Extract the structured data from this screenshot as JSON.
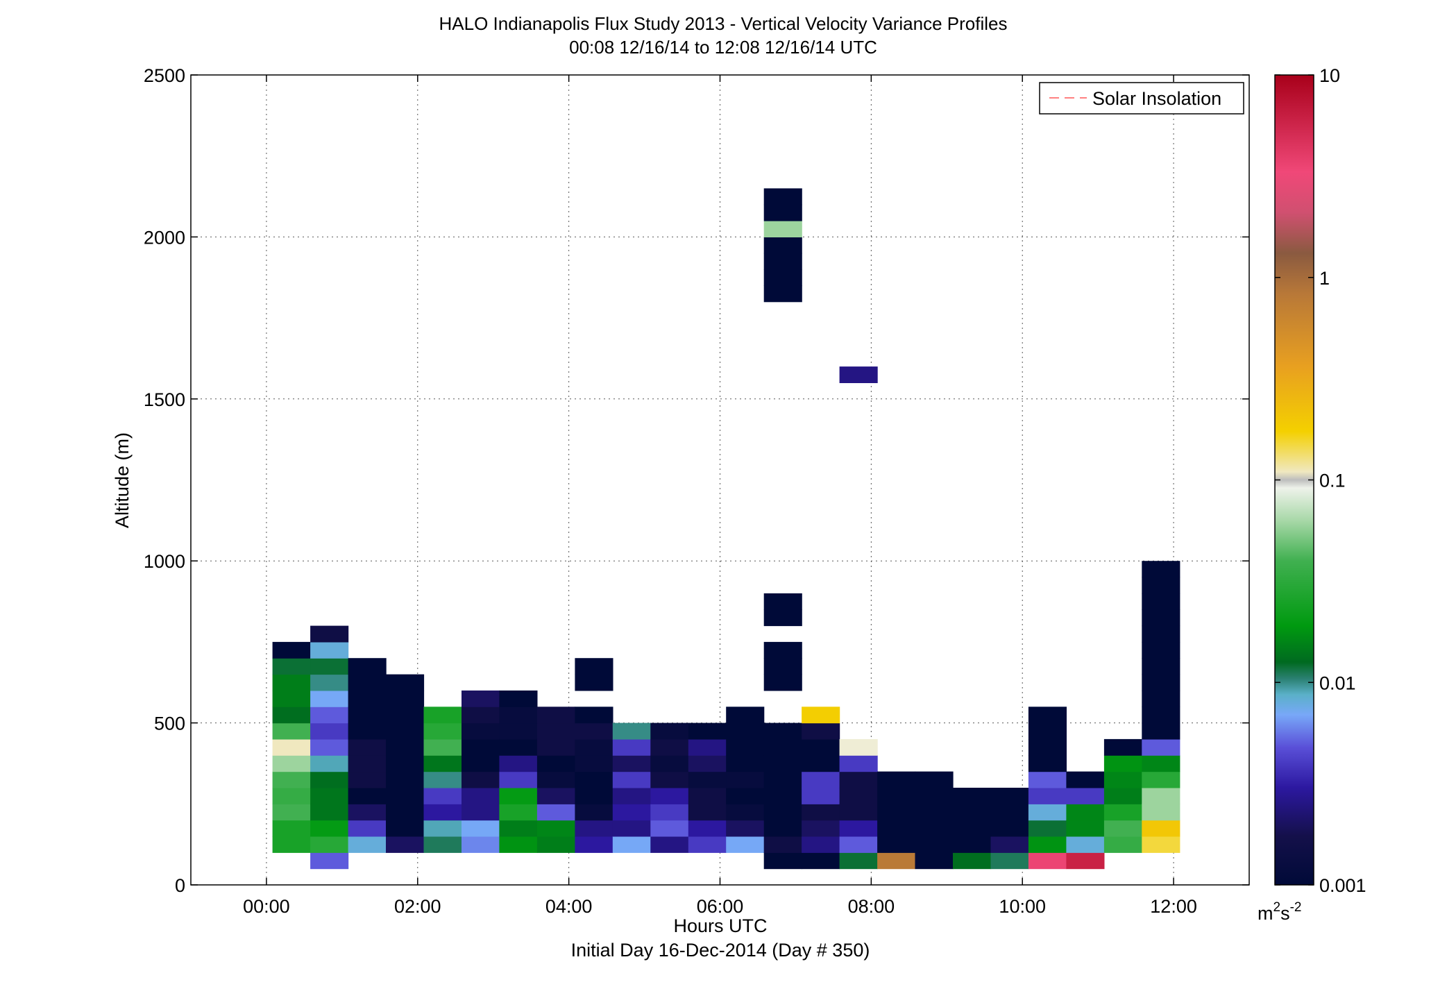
{
  "chart_data": {
    "type": "heatmap",
    "title": "HALO Indianapolis Flux Study 2013 - Vertical Velocity Variance Profiles",
    "subtitle": "00:08 12/16/14 to 12:08 12/16/14  UTC",
    "xlabel": "Hours UTC",
    "xlabel2": "Initial Day 16-Dec-2014 (Day # 350)",
    "ylabel": "Altitude (m)",
    "xlim": [
      -1,
      13
    ],
    "ylim": [
      0,
      2500
    ],
    "x_ticks": [
      0,
      2,
      4,
      6,
      8,
      10,
      12
    ],
    "x_tick_labels": [
      "00:00",
      "02:00",
      "04:00",
      "06:00",
      "08:00",
      "10:00",
      "12:00"
    ],
    "y_ticks": [
      0,
      500,
      1000,
      1500,
      2000,
      2500
    ],
    "y_tick_labels": [
      "0",
      "500",
      "1000",
      "1500",
      "2000",
      "2500"
    ],
    "grid": true,
    "legend": {
      "position": "top-right",
      "entries": [
        {
          "label": "Solar Insolation",
          "color": "#ff8080",
          "style": "dashed"
        }
      ]
    },
    "colorbar": {
      "scale": "log",
      "range": [
        0.001,
        10
      ],
      "ticks": [
        0.001,
        0.01,
        0.1,
        1,
        10
      ],
      "tick_labels": [
        "0.001",
        "0.01",
        "0.1",
        "1",
        "10"
      ],
      "unit": "m2s-2",
      "unit_base": "m",
      "unit_sup1": "2",
      "unit_mid": "s",
      "unit_sup2": "-2"
    },
    "cell_height_m": 50,
    "columns": [
      {
        "t": 0.33,
        "cells": [
          [
            100,
            0.025
          ],
          [
            150,
            0.025
          ],
          [
            200,
            0.04
          ],
          [
            250,
            0.035
          ],
          [
            300,
            0.04
          ],
          [
            350,
            0.06
          ],
          [
            400,
            0.11
          ],
          [
            450,
            0.04
          ],
          [
            500,
            0.013
          ],
          [
            550,
            0.015
          ],
          [
            600,
            0.015
          ],
          [
            650,
            0.012
          ],
          [
            700,
            0.001
          ]
        ]
      },
      {
        "t": 0.83,
        "cells": [
          [
            50,
            0.005
          ],
          [
            100,
            0.03
          ],
          [
            150,
            0.02
          ],
          [
            200,
            0.014
          ],
          [
            250,
            0.014
          ],
          [
            300,
            0.013
          ],
          [
            350,
            0.009
          ],
          [
            400,
            0.005
          ],
          [
            450,
            0.004
          ],
          [
            500,
            0.005
          ],
          [
            550,
            0.007
          ],
          [
            600,
            0.01
          ],
          [
            650,
            0.012
          ],
          [
            700,
            0.008
          ],
          [
            750,
            0.0015
          ]
        ]
      },
      {
        "t": 1.33,
        "cells": [
          [
            100,
            0.008
          ],
          [
            150,
            0.004
          ],
          [
            200,
            0.002
          ],
          [
            250,
            0.001
          ],
          [
            300,
            0.0015
          ],
          [
            350,
            0.0015
          ],
          [
            400,
            0.0015
          ],
          [
            450,
            0.001
          ],
          [
            500,
            0.001
          ],
          [
            550,
            0.001
          ],
          [
            600,
            0.001
          ],
          [
            650,
            0.001
          ]
        ]
      },
      {
        "t": 1.83,
        "cells": [
          [
            100,
            0.002
          ],
          [
            150,
            0.001
          ],
          [
            200,
            0.001
          ],
          [
            250,
            0.001
          ],
          [
            300,
            0.001
          ],
          [
            350,
            0.001
          ],
          [
            400,
            0.001
          ],
          [
            450,
            0.001
          ],
          [
            500,
            0.001
          ],
          [
            550,
            0.001
          ],
          [
            600,
            0.001
          ]
        ]
      },
      {
        "t": 2.33,
        "cells": [
          [
            100,
            0.011
          ],
          [
            150,
            0.009
          ],
          [
            200,
            0.003
          ],
          [
            250,
            0.004
          ],
          [
            300,
            0.01
          ],
          [
            350,
            0.014
          ],
          [
            400,
            0.04
          ],
          [
            450,
            0.03
          ],
          [
            500,
            0.025
          ]
        ]
      },
      {
        "t": 2.83,
        "cells": [
          [
            100,
            0.006
          ],
          [
            150,
            0.007
          ],
          [
            200,
            0.0025
          ],
          [
            250,
            0.0025
          ],
          [
            300,
            0.0015
          ],
          [
            350,
            0.001
          ],
          [
            400,
            0.001
          ],
          [
            450,
            0.0012
          ],
          [
            500,
            0.0015
          ],
          [
            550,
            0.002
          ]
        ]
      },
      {
        "t": 3.33,
        "cells": [
          [
            100,
            0.018
          ],
          [
            150,
            0.015
          ],
          [
            200,
            0.025
          ],
          [
            250,
            0.02
          ],
          [
            300,
            0.004
          ],
          [
            350,
            0.0025
          ],
          [
            400,
            0.001
          ],
          [
            450,
            0.0012
          ],
          [
            500,
            0.0012
          ],
          [
            550,
            0.001
          ]
        ]
      },
      {
        "t": 3.83,
        "cells": [
          [
            100,
            0.015
          ],
          [
            150,
            0.016
          ],
          [
            200,
            0.005
          ],
          [
            250,
            0.002
          ],
          [
            300,
            0.0012
          ],
          [
            350,
            0.001
          ],
          [
            400,
            0.0015
          ],
          [
            450,
            0.0015
          ],
          [
            500,
            0.0015
          ]
        ]
      },
      {
        "t": 4.33,
        "cells": [
          [
            100,
            0.003
          ],
          [
            150,
            0.0025
          ],
          [
            200,
            0.0012
          ],
          [
            250,
            0.001
          ],
          [
            300,
            0.001
          ],
          [
            350,
            0.0012
          ],
          [
            400,
            0.0012
          ],
          [
            450,
            0.0015
          ],
          [
            500,
            0.001
          ],
          [
            600,
            0.001
          ],
          [
            650,
            0.001
          ]
        ]
      },
      {
        "t": 4.83,
        "cells": [
          [
            100,
            0.007
          ],
          [
            150,
            0.0025
          ],
          [
            200,
            0.003
          ],
          [
            250,
            0.0025
          ],
          [
            300,
            0.004
          ],
          [
            350,
            0.002
          ],
          [
            400,
            0.004
          ],
          [
            450,
            0.01
          ]
        ]
      },
      {
        "t": 5.33,
        "cells": [
          [
            100,
            0.0025
          ],
          [
            150,
            0.005
          ],
          [
            200,
            0.004
          ],
          [
            250,
            0.003
          ],
          [
            300,
            0.0015
          ],
          [
            350,
            0.0012
          ],
          [
            400,
            0.0015
          ],
          [
            450,
            0.0012
          ]
        ]
      },
      {
        "t": 5.83,
        "cells": [
          [
            100,
            0.004
          ],
          [
            150,
            0.003
          ],
          [
            200,
            0.0015
          ],
          [
            250,
            0.0015
          ],
          [
            300,
            0.0012
          ],
          [
            350,
            0.002
          ],
          [
            400,
            0.0025
          ],
          [
            450,
            0.001
          ]
        ]
      },
      {
        "t": 6.33,
        "cells": [
          [
            100,
            0.007
          ],
          [
            150,
            0.002
          ],
          [
            200,
            0.0012
          ],
          [
            250,
            0.001
          ],
          [
            300,
            0.0012
          ],
          [
            350,
            0.001
          ],
          [
            400,
            0.001
          ],
          [
            450,
            0.001
          ],
          [
            500,
            0.001
          ]
        ]
      },
      {
        "t": 6.83,
        "cells": [
          [
            50,
            0.001
          ],
          [
            100,
            0.0015
          ],
          [
            150,
            0.001
          ],
          [
            200,
            0.001
          ],
          [
            250,
            0.001
          ],
          [
            300,
            0.001
          ],
          [
            350,
            0.001
          ],
          [
            400,
            0.001
          ],
          [
            450,
            0.001
          ],
          [
            600,
            0.001
          ],
          [
            650,
            0.001
          ],
          [
            700,
            0.001
          ],
          [
            800,
            0.001
          ],
          [
            850,
            0.001
          ],
          [
            1800,
            0.001
          ],
          [
            1850,
            0.001
          ],
          [
            1900,
            0.001
          ],
          [
            1950,
            0.001
          ],
          [
            2000,
            0.06
          ],
          [
            2050,
            0.001
          ],
          [
            2100,
            0.001
          ]
        ]
      },
      {
        "t": 7.33,
        "cells": [
          [
            50,
            0.001
          ],
          [
            100,
            0.0025
          ],
          [
            150,
            0.002
          ],
          [
            200,
            0.0015
          ],
          [
            250,
            0.004
          ],
          [
            300,
            0.004
          ],
          [
            350,
            0.001
          ],
          [
            400,
            0.001
          ],
          [
            450,
            0.0015
          ],
          [
            500,
            0.18
          ]
        ]
      },
      {
        "t": 7.83,
        "cells": [
          [
            50,
            0.012
          ],
          [
            100,
            0.005
          ],
          [
            150,
            0.003
          ],
          [
            200,
            0.0015
          ],
          [
            250,
            0.0015
          ],
          [
            300,
            0.0015
          ],
          [
            350,
            0.004
          ],
          [
            400,
            0.1
          ],
          [
            1550,
            0.0025
          ]
        ]
      },
      {
        "t": 8.33,
        "cells": [
          [
            50,
            0.8
          ],
          [
            100,
            0.001
          ],
          [
            150,
            0.001
          ],
          [
            200,
            0.001
          ],
          [
            250,
            0.001
          ],
          [
            300,
            0.001
          ]
        ]
      },
      {
        "t": 8.83,
        "cells": [
          [
            50,
            0.001
          ],
          [
            100,
            0.001
          ],
          [
            150,
            0.001
          ],
          [
            200,
            0.001
          ],
          [
            250,
            0.001
          ],
          [
            300,
            0.001
          ]
        ]
      },
      {
        "t": 9.33,
        "cells": [
          [
            50,
            0.013
          ],
          [
            100,
            0.001
          ],
          [
            150,
            0.001
          ],
          [
            200,
            0.001
          ],
          [
            250,
            0.001
          ]
        ]
      },
      {
        "t": 9.83,
        "cells": [
          [
            50,
            0.011
          ],
          [
            100,
            0.002
          ],
          [
            150,
            0.001
          ],
          [
            200,
            0.001
          ],
          [
            250,
            0.001
          ]
        ]
      },
      {
        "t": 10.33,
        "cells": [
          [
            50,
            3.5
          ],
          [
            100,
            0.018
          ],
          [
            150,
            0.012
          ],
          [
            200,
            0.008
          ],
          [
            250,
            0.004
          ],
          [
            300,
            0.005
          ],
          [
            350,
            0.001
          ],
          [
            400,
            0.001
          ],
          [
            450,
            0.001
          ],
          [
            500,
            0.001
          ]
        ]
      },
      {
        "t": 10.83,
        "cells": [
          [
            50,
            6
          ],
          [
            100,
            0.008
          ],
          [
            150,
            0.016
          ],
          [
            200,
            0.016
          ],
          [
            250,
            0.004
          ],
          [
            300,
            0.001
          ]
        ]
      },
      {
        "t": 11.33,
        "cells": [
          [
            100,
            0.035
          ],
          [
            150,
            0.04
          ],
          [
            200,
            0.025
          ],
          [
            250,
            0.015
          ],
          [
            300,
            0.016
          ],
          [
            350,
            0.018
          ],
          [
            400,
            0.001
          ]
        ]
      },
      {
        "t": 11.83,
        "cells": [
          [
            100,
            0.15
          ],
          [
            150,
            0.2
          ],
          [
            200,
            0.06
          ],
          [
            250,
            0.06
          ],
          [
            300,
            0.03
          ],
          [
            350,
            0.016
          ],
          [
            400,
            0.005
          ],
          [
            450,
            0.001
          ],
          [
            500,
            0.001
          ],
          [
            550,
            0.001
          ],
          [
            600,
            0.001
          ],
          [
            650,
            0.001
          ],
          [
            700,
            0.001
          ],
          [
            750,
            0.001
          ],
          [
            800,
            0.001
          ],
          [
            850,
            0.001
          ],
          [
            900,
            0.001
          ],
          [
            950,
            0.001
          ]
        ]
      }
    ]
  }
}
